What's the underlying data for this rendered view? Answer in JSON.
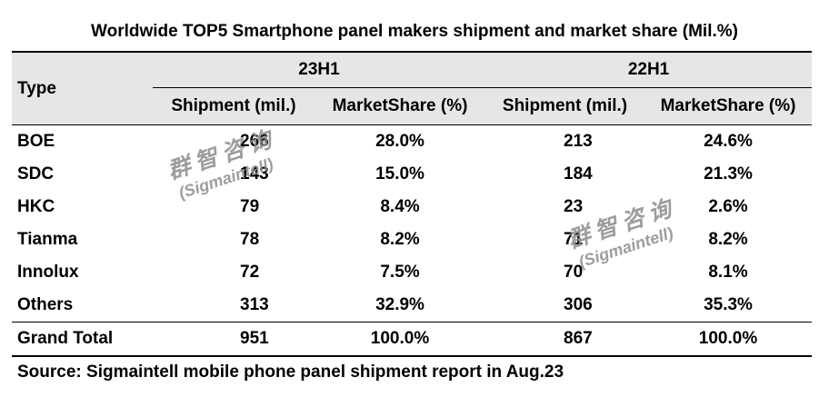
{
  "chart_data": {
    "type": "table",
    "title": "Worldwide TOP5 Smartphone panel makers shipment and market share (Mil.%)",
    "header": {
      "type_label": "Type",
      "periods": [
        "23H1",
        "22H1"
      ],
      "sub_columns": [
        "Shipment (mil.)",
        "MarketShare (%)",
        "Shipment (mil.)",
        "MarketShare (%)"
      ]
    },
    "rows": [
      {
        "name": "BOE",
        "ship_23h1": "266",
        "share_23h1": "28.0%",
        "ship_22h1": "213",
        "share_22h1": "24.6%"
      },
      {
        "name": "SDC",
        "ship_23h1": "143",
        "share_23h1": "15.0%",
        "ship_22h1": "184",
        "share_22h1": "21.3%"
      },
      {
        "name": "HKC",
        "ship_23h1": "79",
        "share_23h1": "8.4%",
        "ship_22h1": "23",
        "share_22h1": "2.6%"
      },
      {
        "name": "Tianma",
        "ship_23h1": "78",
        "share_23h1": "8.2%",
        "ship_22h1": "71",
        "share_22h1": "8.2%"
      },
      {
        "name": "Innolux",
        "ship_23h1": "72",
        "share_23h1": "7.5%",
        "ship_22h1": "70",
        "share_22h1": "8.1%"
      },
      {
        "name": "Others",
        "ship_23h1": "313",
        "share_23h1": "32.9%",
        "ship_22h1": "306",
        "share_22h1": "35.3%"
      }
    ],
    "total": {
      "name": "Grand Total",
      "ship_23h1": "951",
      "share_23h1": "100.0%",
      "ship_22h1": "867",
      "share_22h1": "100.0%"
    },
    "source": "Source: Sigmaintell mobile phone panel shipment report in Aug.23"
  },
  "watermark": {
    "cn": "群智咨询",
    "en": "(Sigmaintell)"
  }
}
